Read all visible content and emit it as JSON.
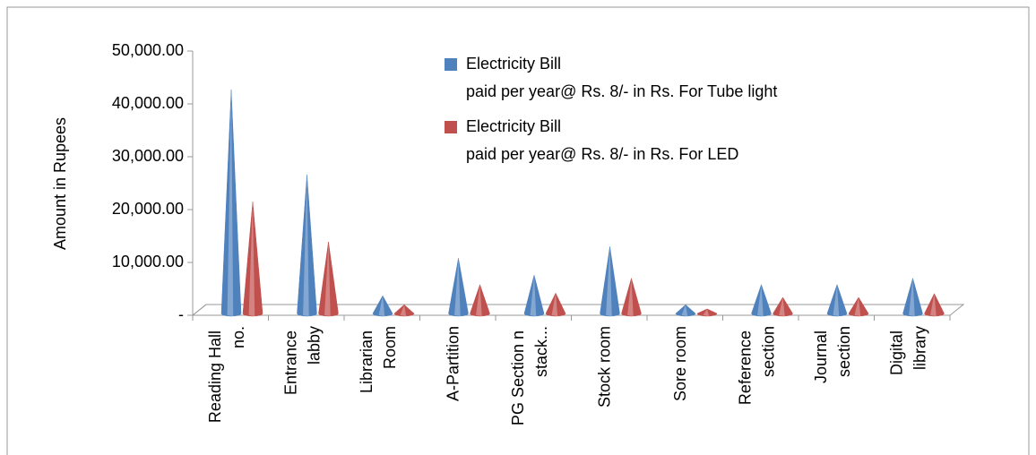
{
  "chart_data": {
    "type": "cone",
    "y_axis_label": "Amount in Rupees",
    "categories": [
      "Reading Hall no.",
      "Entrance labby",
      "Librarian Room",
      "A-Partition",
      "PG Section n stack...",
      "Stock room",
      "Sore room",
      "Reference section",
      "Journal section",
      "Digital library"
    ],
    "series": [
      {
        "name": "Electricity Bill paid per year@ Rs. 8/-  in Rs. For Tube light",
        "color": "#4f81bd",
        "values": [
          42700,
          26600,
          3700,
          10800,
          7600,
          13000,
          2000,
          5800,
          5800,
          7000
        ]
      },
      {
        "name": "Electricity Bill paid per year@ Rs. 8/-  in Rs. For LED",
        "color": "#c0504d",
        "values": [
          21500,
          13900,
          2000,
          5800,
          4200,
          7000,
          1200,
          3400,
          3400,
          4100
        ]
      }
    ],
    "ylim": [
      0,
      50000
    ],
    "yticks": [
      {
        "value": 0,
        "label": "-"
      },
      {
        "value": 10000,
        "label": "10,000.00"
      },
      {
        "value": 20000,
        "label": "20,000.00"
      },
      {
        "value": 30000,
        "label": "30,000.00"
      },
      {
        "value": 40000,
        "label": "40,000.00"
      },
      {
        "value": 50000,
        "label": "50,000.00"
      }
    ],
    "legend": "top-right"
  }
}
